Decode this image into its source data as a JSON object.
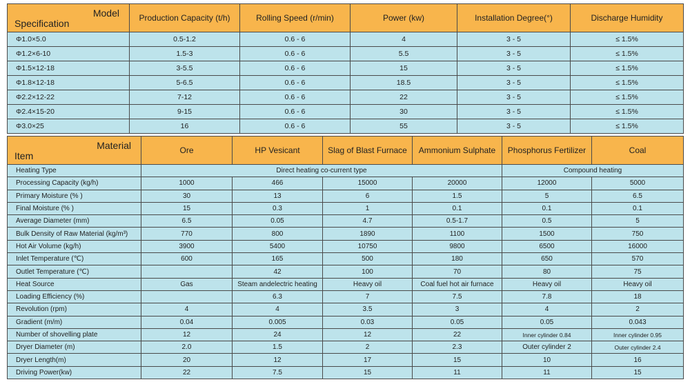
{
  "table1": {
    "header": {
      "corner_top": "Model",
      "corner_bottom": "Specification",
      "columns": [
        "Production Capacity (t/h)",
        "Rolling Speed (r/min)",
        "Power (kw)",
        "Installation Degree(°)",
        "Discharge Humidity"
      ]
    },
    "rows": [
      [
        "Φ1.0×5.0",
        "0.5-1.2",
        "0.6 - 6",
        "4",
        "3 - 5",
        "≤ 1.5%"
      ],
      [
        "Φ1.2×6-10",
        "1.5-3",
        "0.6 - 6",
        "5.5",
        "3 - 5",
        "≤ 1.5%"
      ],
      [
        "Φ1.5×12-18",
        "3-5.5",
        "0.6 - 6",
        "15",
        "3 - 5",
        "≤ 1.5%"
      ],
      [
        "Φ1.8×12-18",
        "5-6.5",
        "0.6 - 6",
        "18.5",
        "3 - 5",
        "≤ 1.5%"
      ],
      [
        "Φ2.2×12-22",
        "7-12",
        "0.6 - 6",
        "22",
        "3 - 5",
        "≤ 1.5%"
      ],
      [
        "Φ2.4×15-20",
        "9-15",
        "0.6 - 6",
        "30",
        "3 - 5",
        "≤ 1.5%"
      ],
      [
        "Φ3.0×25",
        "16",
        "0.6 - 6",
        "55",
        "3 - 5",
        "≤ 1.5%"
      ]
    ]
  },
  "table2": {
    "header": {
      "corner_top": "Material",
      "corner_bottom": "Item",
      "columns": [
        "Ore",
        "HP Vesicant",
        "Slag of Blast Furnace",
        "Ammonium Sulphate",
        "Phosphorus Fertilizer",
        "Coal"
      ]
    },
    "heating_type": {
      "label": "Heating Type",
      "direct": "Direct heating co-current type",
      "compound": "Compound heating"
    },
    "rows": [
      [
        "Processing Capacity (kg/h)",
        "1000",
        "466",
        "15000",
        "20000",
        "12000",
        "5000"
      ],
      [
        "Primary Moisture (% )",
        "30",
        "13",
        "6",
        "1.5",
        "5",
        "6.5"
      ],
      [
        "Final Moisture (% )",
        "15",
        "0.3",
        "1",
        "0.1",
        "0.1",
        "0.1"
      ],
      [
        "Average Diameter (mm)",
        "6.5",
        "0.05",
        "4.7",
        "0.5-1.7",
        "0.5",
        "5"
      ],
      [
        "Bulk Density of Raw Material (kg/m³)",
        "770",
        "800",
        "1890",
        "1100",
        "1500",
        "750"
      ],
      [
        "Hot Air Volume (kg/h)",
        "3900",
        "5400",
        "10750",
        "9800",
        "6500",
        "16000"
      ],
      [
        "Inlet Temperature (℃)",
        "600",
        "165",
        "500",
        "180",
        "650",
        "570"
      ],
      [
        "Outlet Temperature (℃)",
        null,
        "42",
        "100",
        "70",
        "80",
        "75"
      ],
      [
        "Heat Source",
        "Gas",
        "Steam andelectric heating",
        "Heavy oil",
        "Coal fuel hot air furnace",
        "Heavy oil",
        "Heavy oil"
      ],
      [
        "Loading Efficiency (%)",
        null,
        "6.3",
        "7",
        "7.5",
        "7.8",
        "18"
      ],
      [
        "Revolution (rpm)",
        "4",
        "4",
        "3.5",
        "3",
        "4",
        "2"
      ],
      [
        "Gradient (m/m)",
        "0.04",
        "0.005",
        "0.03",
        "0.05",
        "0.05",
        "0.043"
      ],
      [
        "Number of shovelling plate",
        "12",
        "24",
        "12",
        "22",
        "Inner cylinder 0.84",
        "Inner cylinder 0.95"
      ],
      [
        "Dryer Diameter (m)",
        "2.0",
        "1.5",
        "2",
        "2.3",
        "Outer cylinder 2",
        "Outer cylinder 2.4"
      ],
      [
        "Dryer Length(m)",
        "20",
        "12",
        "17",
        "15",
        "10",
        "16"
      ],
      [
        "Driving Power(kw)",
        "22",
        "7.5",
        "15",
        "11",
        "11",
        "15"
      ]
    ]
  }
}
